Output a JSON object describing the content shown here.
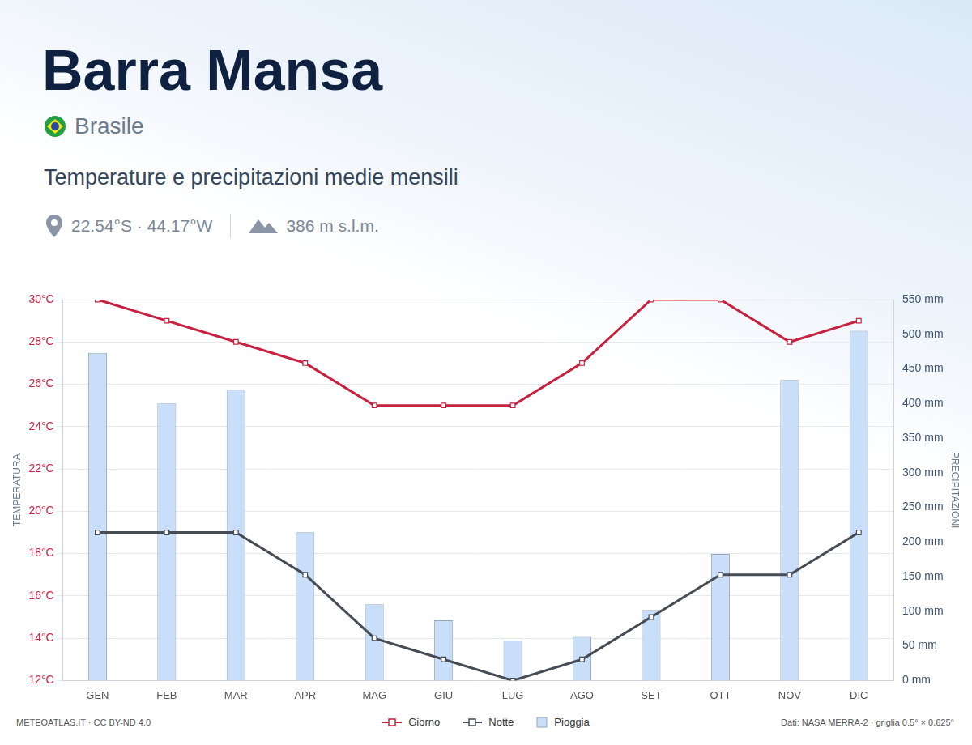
{
  "chart_data": {
    "type": "bar",
    "title": "Barra Mansa",
    "country": "Brasile",
    "subtitle": "Temperature e precipitazioni medie mensili",
    "coordinates": "22.54°S · 44.17°W",
    "elevation": "386 m s.l.m.",
    "credit": "METEOATLAS.IT · CC BY-ND 4.0",
    "source": "Dati: NASA MERRA-2 · griglia 0.5° × 0.625°",
    "ylabel": "TEMPERATURA",
    "y2label": "PRECIPITAZIONI",
    "categories": [
      "GEN",
      "FEB",
      "MAR",
      "APR",
      "MAG",
      "GIU",
      "LUG",
      "AGO",
      "SET",
      "OTT",
      "NOV",
      "DIC"
    ],
    "series": [
      {
        "name": "Giorno",
        "type": "line",
        "color": "#c8203f",
        "marker": "square",
        "values": [
          30,
          29,
          28,
          27,
          25,
          25,
          25,
          27,
          30,
          30,
          28,
          29
        ]
      },
      {
        "name": "Notte",
        "type": "line",
        "color": "#464c55",
        "marker": "square",
        "values": [
          19,
          19,
          19,
          17,
          14,
          13,
          12,
          13,
          15,
          17,
          17,
          19
        ]
      },
      {
        "name": "Pioggia",
        "type": "bar",
        "axis": "y2",
        "color": "#c9def9",
        "values": [
          473,
          400,
          420,
          214,
          110,
          87,
          58,
          63,
          102,
          183,
          434,
          505
        ]
      }
    ],
    "ylim": [
      12,
      30
    ],
    "yticks": [
      {
        "value": 12,
        "label": "12°C"
      },
      {
        "value": 14,
        "label": "14°C"
      },
      {
        "value": 16,
        "label": "16°C"
      },
      {
        "value": 18,
        "label": "18°C"
      },
      {
        "value": 20,
        "label": "20°C"
      },
      {
        "value": 22,
        "label": "22°C"
      },
      {
        "value": 24,
        "label": "24°C"
      },
      {
        "value": 26,
        "label": "26°C"
      },
      {
        "value": 28,
        "label": "28°C"
      },
      {
        "value": 30,
        "label": "30°C"
      }
    ],
    "y2lim": [
      0,
      550
    ],
    "y2ticks": [
      {
        "value": 0,
        "label": "0 mm"
      },
      {
        "value": 50,
        "label": "50 mm"
      },
      {
        "value": 100,
        "label": "100 mm"
      },
      {
        "value": 150,
        "label": "150 mm"
      },
      {
        "value": 200,
        "label": "200 mm"
      },
      {
        "value": 250,
        "label": "250 mm"
      },
      {
        "value": 300,
        "label": "300 mm"
      },
      {
        "value": 350,
        "label": "350 mm"
      },
      {
        "value": 400,
        "label": "400 mm"
      },
      {
        "value": 450,
        "label": "450 mm"
      },
      {
        "value": 500,
        "label": "500 mm"
      },
      {
        "value": 550,
        "label": "550 mm"
      }
    ],
    "grid": true,
    "legend": "bottom"
  }
}
